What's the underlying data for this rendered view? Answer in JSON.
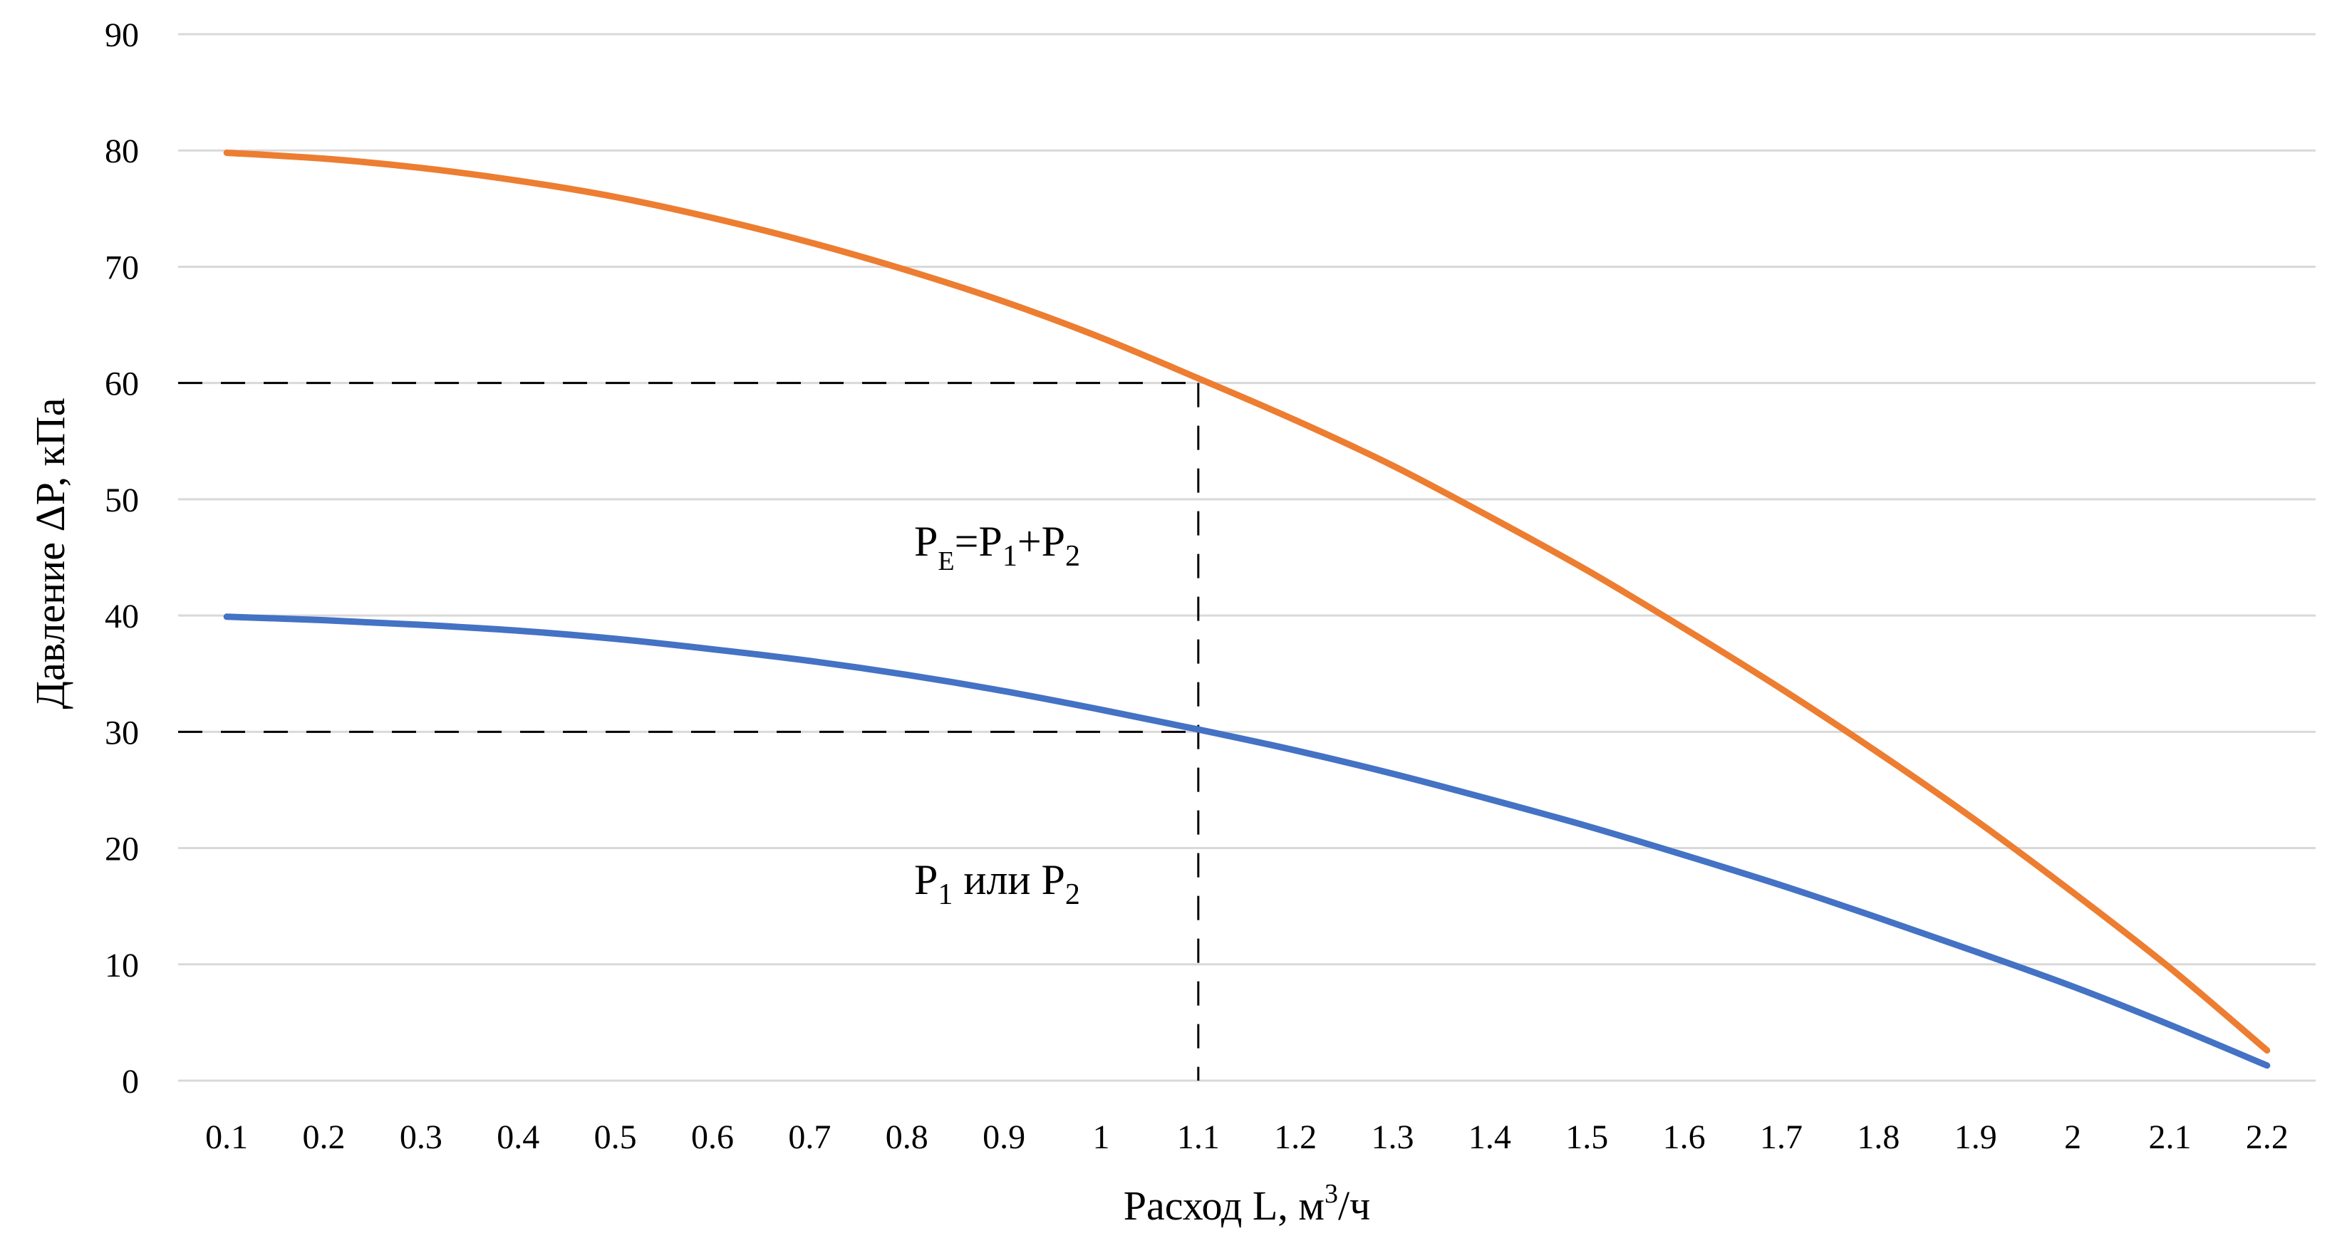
{
  "chart_data": {
    "type": "line",
    "categories": [
      "0.1",
      "0.2",
      "0.3",
      "0.4",
      "0.5",
      "0.6",
      "0.7",
      "0.8",
      "0.9",
      "1",
      "1.1",
      "1.2",
      "1.3",
      "1.4",
      "1.5",
      "1.6",
      "1.7",
      "1.8",
      "1.9",
      "2",
      "2.1",
      "2.2"
    ],
    "x": [
      0.1,
      0.2,
      0.3,
      0.4,
      0.5,
      0.6,
      0.7,
      0.8,
      0.9,
      1.0,
      1.1,
      1.2,
      1.3,
      1.4,
      1.5,
      1.6,
      1.7,
      1.8,
      1.9,
      2.0,
      2.1,
      2.2
    ],
    "series": [
      {
        "color": "#ed7d31",
        "values": [
          79.8,
          79.3,
          78.5,
          77.4,
          76.0,
          74.2,
          72.1,
          69.7,
          67.0,
          63.9,
          60.4,
          56.8,
          52.9,
          48.5,
          43.9,
          38.9,
          33.7,
          28.2,
          22.4,
          16.2,
          9.7,
          2.6
        ]
      },
      {
        "color": "#4472c4",
        "values": [
          39.9,
          39.6,
          39.2,
          38.7,
          38.0,
          37.1,
          36.1,
          34.9,
          33.5,
          31.9,
          30.2,
          28.4,
          26.4,
          24.2,
          21.9,
          19.4,
          16.8,
          14.0,
          11.1,
          8.1,
          4.8,
          1.3
        ]
      }
    ],
    "ylim": [
      0,
      90
    ],
    "yticks": [
      "0",
      "10",
      "20",
      "30",
      "40",
      "50",
      "60",
      "70",
      "80",
      "90"
    ],
    "ylabel": "Давление ΔP, кПа",
    "xlabel": "Расход L, м³/ч",
    "grid": "horizontal",
    "guides": [
      {
        "x": 1.1,
        "y": 60
      },
      {
        "x": 1.1,
        "y": 30
      }
    ],
    "annotations": [
      {
        "text": "PE=P1+P2"
      },
      {
        "text": "P1 или P2"
      }
    ]
  }
}
